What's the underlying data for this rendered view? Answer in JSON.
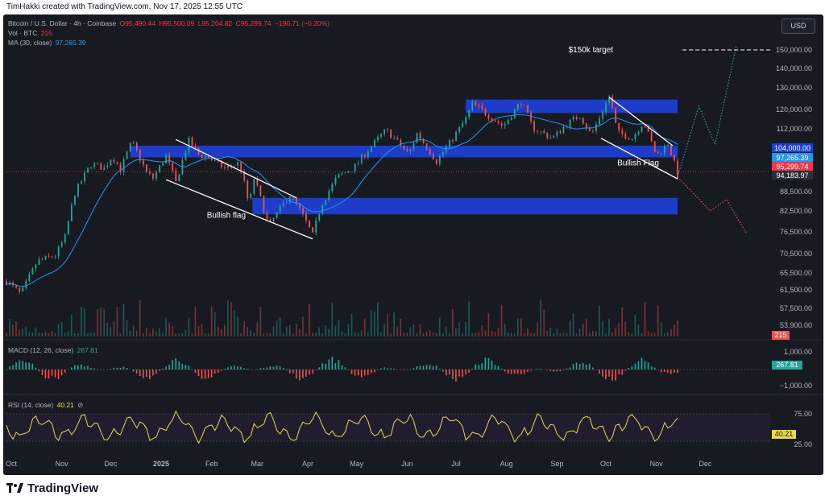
{
  "header": {
    "credit": "TimHakki created with TradingView.com, Nov 17, 2025 12:55 UTC"
  },
  "legend": {
    "symbol": "Bitcoin / U.S. Dollar · 4h · Coinbase",
    "open": "O95,490.44",
    "high": "H95,500.09",
    "low": "L95,204.82",
    "close": "C95,299.74",
    "change": "−190.71 (−0.20%)",
    "vol_label": "Vol · BTC",
    "vol_value": "215",
    "ma_label": "MA (30, close)",
    "ma_value": "97,265.39"
  },
  "currency_button": "USD",
  "macd_legend": {
    "label": "MACD (12, 26, close)",
    "value": "267.81"
  },
  "rsi_legend": {
    "label": "RSI (14, close)",
    "value": "40.21"
  },
  "colors": {
    "up": "#26a69a",
    "down": "#ef5350",
    "ma": "#2196f3",
    "zone": "#1e3fd6",
    "rsi": "#e8d84a",
    "background": "#181a22"
  },
  "chart_data": [
    {
      "type": "line",
      "name": "price",
      "x": [
        "Oct",
        "Nov",
        "Dec",
        "2025",
        "Feb",
        "Mar",
        "Apr",
        "May",
        "Jun",
        "Jul",
        "Aug",
        "Sep",
        "Oct",
        "Nov",
        "Dec"
      ],
      "price_path": [
        [
          "2024-10-01",
          63500
        ],
        [
          "2024-10-10",
          60500
        ],
        [
          "2024-10-20",
          68500
        ],
        [
          "2024-10-31",
          70000
        ],
        [
          "2024-11-06",
          75000
        ],
        [
          "2024-11-12",
          88000
        ],
        [
          "2024-11-22",
          98000
        ],
        [
          "2024-11-30",
          96500
        ],
        [
          "2024-12-05",
          101000
        ],
        [
          "2024-12-10",
          96000
        ],
        [
          "2024-12-17",
          106500
        ],
        [
          "2024-12-26",
          95000
        ],
        [
          "2024-12-30",
          93000
        ],
        [
          "2025-01-07",
          101000
        ],
        [
          "2025-01-13",
          91500
        ],
        [
          "2025-01-21",
          107000
        ],
        [
          "2025-01-27",
          101500
        ],
        [
          "2025-02-03",
          100000
        ],
        [
          "2025-02-12",
          96500
        ],
        [
          "2025-02-21",
          98500
        ],
        [
          "2025-02-27",
          84000
        ],
        [
          "2025-03-02",
          93000
        ],
        [
          "2025-03-11",
          78000
        ],
        [
          "2025-03-24",
          87500
        ],
        [
          "2025-03-31",
          82000
        ],
        [
          "2025-04-07",
          75500
        ],
        [
          "2025-04-12",
          84000
        ],
        [
          "2025-04-22",
          93500
        ],
        [
          "2025-05-02",
          96500
        ],
        [
          "2025-05-12",
          104000
        ],
        [
          "2025-05-22",
          111500
        ],
        [
          "2025-06-05",
          101500
        ],
        [
          "2025-06-10",
          110000
        ],
        [
          "2025-06-22",
          99000
        ],
        [
          "2025-07-01",
          107000
        ],
        [
          "2025-07-10",
          116000
        ],
        [
          "2025-07-14",
          122500
        ],
        [
          "2025-07-25",
          117000
        ],
        [
          "2025-08-02",
          113000
        ],
        [
          "2025-08-13",
          123500
        ],
        [
          "2025-08-20",
          112500
        ],
        [
          "2025-09-01",
          108000
        ],
        [
          "2025-09-10",
          114000
        ],
        [
          "2025-09-18",
          117500
        ],
        [
          "2025-09-25",
          109500
        ],
        [
          "2025-10-01",
          118000
        ],
        [
          "2025-10-06",
          126000
        ],
        [
          "2025-10-11",
          110500
        ],
        [
          "2025-10-20",
          108000
        ],
        [
          "2025-10-27",
          115000
        ],
        [
          "2025-11-04",
          101000
        ],
        [
          "2025-11-11",
          106000
        ],
        [
          "2025-11-17",
          94183
        ]
      ],
      "ma_label": "MA (30, close)",
      "yaxis_ticks": [
        150000,
        140000,
        130000,
        120000,
        112000,
        104000,
        88500,
        82500,
        76500,
        70500,
        65500,
        61500,
        57500,
        53900
      ],
      "price_labels": [
        {
          "value": "104,000.00",
          "color": "#1e3fd6"
        },
        {
          "value": "97,265.39",
          "color": "#2196f3"
        },
        {
          "value": "95,299.74",
          "color": "#f23645"
        },
        {
          "value": "94,183.97",
          "color": "#2a2e39"
        }
      ],
      "zones": [
        {
          "from": "2024-12-16",
          "to": "2025-11-17",
          "low": 100500,
          "high": 105000
        },
        {
          "from": "2025-07-10",
          "to": "2025-11-17",
          "low": 118500,
          "high": 124500
        },
        {
          "from": "2025-03-01",
          "to": "2025-11-17",
          "low": 81500,
          "high": 86500
        }
      ],
      "annotations": [
        {
          "text": "Bullish flag"
        },
        {
          "text": "Bullish Flag"
        },
        {
          "text": "$150k target",
          "value": 150000
        }
      ]
    },
    {
      "type": "bar",
      "name": "volume",
      "label": "Vol · BTC",
      "last": "215"
    },
    {
      "type": "bar",
      "name": "macd",
      "label": "MACD (12, 26, close)",
      "yaxis_ticks": [
        "1,000.00",
        "−1,000.00"
      ],
      "last": "267.81"
    },
    {
      "type": "line",
      "name": "rsi",
      "label": "RSI (14, close)",
      "yaxis_ticks": [
        "75.00",
        "25.00"
      ],
      "bands": [
        30,
        70
      ],
      "last": "40.21"
    }
  ]
}
